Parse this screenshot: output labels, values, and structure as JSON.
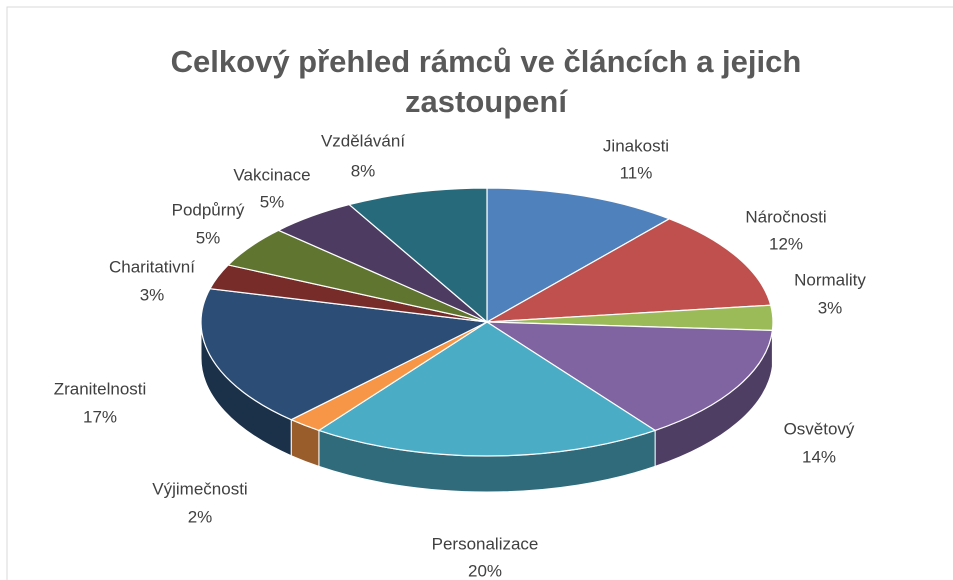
{
  "chart_data": {
    "type": "pie3d",
    "title": "Celkový přehled rámců ve článcích a jejich zastoupení",
    "categories": [
      "Jinakosti",
      "Náročnosti",
      "Normality",
      "Osvětový",
      "Personalizace",
      "Výjimečnosti",
      "Zranitelnosti",
      "Charitativní",
      "Podpůrný",
      "Vakcinace",
      "Vzdělávání"
    ],
    "values": [
      11,
      12,
      3,
      14,
      20,
      2,
      17,
      3,
      5,
      5,
      8
    ],
    "value_labels": [
      "11%",
      "12%",
      "3%",
      "14%",
      "20%",
      "2%",
      "17%",
      "3%",
      "5%",
      "5%",
      "8%"
    ],
    "colors": [
      "#4f81bd",
      "#c0504d",
      "#9bbb59",
      "#8064a2",
      "#4bacc6",
      "#f79646",
      "#2c4d75",
      "#772c2a",
      "#5f7530",
      "#4d3b62",
      "#276a7c"
    ]
  }
}
